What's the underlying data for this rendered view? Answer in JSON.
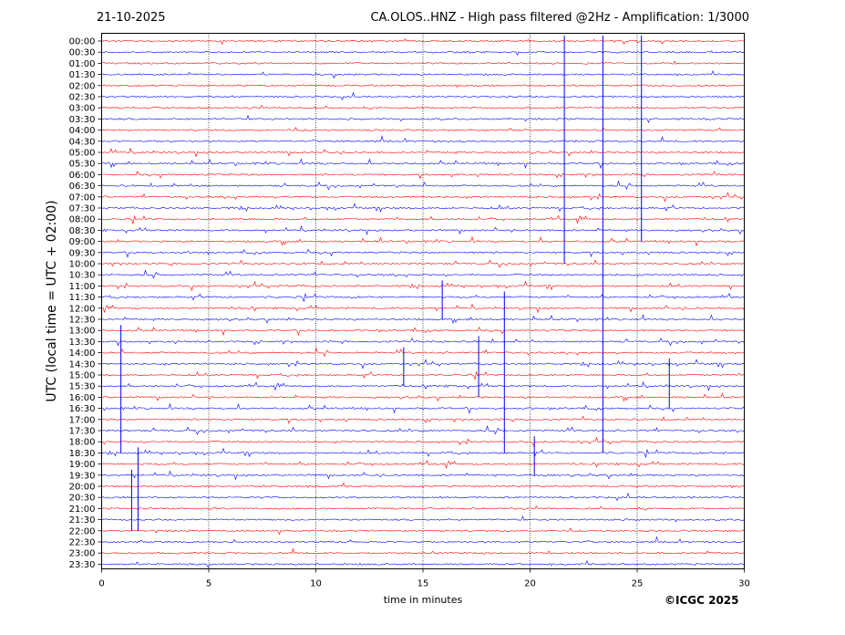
{
  "header": {
    "date": "21-10-2025",
    "title": "CA.OLOS..HNZ - High pass filtered @2Hz - Amplification: 1/3000"
  },
  "chart_data": {
    "type": "line",
    "subtype": "helicorder",
    "ylabel": "UTC (local time = UTC + 02:00)",
    "xlabel": "time in minutes",
    "xlim": [
      0,
      30
    ],
    "x_ticks": [
      0,
      5,
      10,
      15,
      20,
      25,
      30
    ],
    "y_ticks": [
      "00:00",
      "00:30",
      "01:00",
      "01:30",
      "02:00",
      "02:30",
      "03:00",
      "03:30",
      "04:00",
      "04:30",
      "05:00",
      "05:30",
      "06:00",
      "06:30",
      "07:00",
      "07:30",
      "08:00",
      "08:30",
      "09:00",
      "09:30",
      "10:00",
      "10:30",
      "11:00",
      "11:30",
      "12:00",
      "12:30",
      "13:00",
      "13:30",
      "14:00",
      "14:30",
      "15:00",
      "15:30",
      "16:00",
      "16:30",
      "17:00",
      "17:30",
      "18:00",
      "18:30",
      "19:00",
      "19:30",
      "20:00",
      "20:30",
      "21:00",
      "21:30",
      "22:00",
      "22:30",
      "23:00",
      "23:30"
    ],
    "trace_colors": [
      "#ff0000",
      "#0000ff"
    ],
    "grid_x": true,
    "large_events": [
      {
        "row": 0,
        "minute": 21.6,
        "span_rows": 20
      },
      {
        "row": 0,
        "minute": 23.4,
        "span_rows": 37
      },
      {
        "row": 0,
        "minute": 25.2,
        "span_rows": 18
      },
      {
        "row": 22,
        "minute": 15.9,
        "span_rows": 3
      },
      {
        "row": 23,
        "minute": 18.8,
        "span_rows": 14
      },
      {
        "row": 27,
        "minute": 17.6,
        "span_rows": 5
      },
      {
        "row": 28,
        "minute": 14.1,
        "span_rows": 3
      },
      {
        "row": 29,
        "minute": 26.5,
        "span_rows": 4
      },
      {
        "row": 36,
        "minute": 20.2,
        "span_rows": 3
      },
      {
        "row": 37,
        "minute": 1.7,
        "span_rows": 7
      },
      {
        "row": 39,
        "minute": 1.4,
        "span_rows": 5
      },
      {
        "row": 26,
        "minute": 0.9,
        "span_rows": 11
      }
    ]
  },
  "copyright": "©ICGC 2025"
}
